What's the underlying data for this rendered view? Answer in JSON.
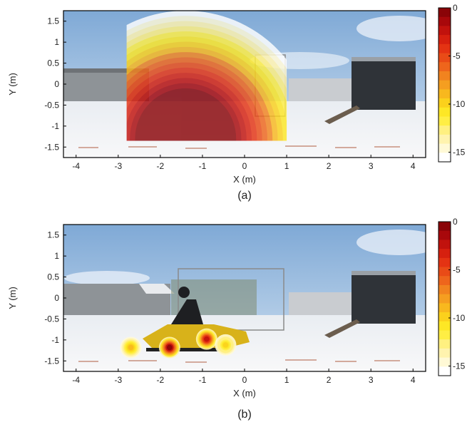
{
  "chart_data": [
    {
      "type": "heatmap",
      "caption": "(a)",
      "xlabel": "X (m)",
      "ylabel": "Y (m)",
      "xlim": [
        -4.3,
        4.3
      ],
      "ylim": [
        -1.75,
        1.75
      ],
      "xticks": [
        -4,
        -3,
        -2,
        -1,
        0,
        1,
        2,
        3,
        4
      ],
      "yticks": [
        1.5,
        1,
        0.5,
        0,
        -0.5,
        -1,
        -1.5
      ],
      "colorbar": {
        "ticks": [
          0,
          -5,
          -10,
          -15
        ],
        "range": [
          -16,
          0
        ]
      },
      "map": {
        "kind": "radial",
        "source": {
          "x": -1.4,
          "y": -1.3
        },
        "extent": {
          "x": [
            -2.8,
            1.0
          ],
          "y": [
            -1.35,
            1.75
          ]
        },
        "outer_radius": 3.05,
        "radius_0dB": 1.2
      }
    },
    {
      "type": "heatmap",
      "caption": "(b)",
      "xlabel": "X (m)",
      "ylabel": "Y (m)",
      "xlim": [
        -4.3,
        4.3
      ],
      "ylim": [
        -1.75,
        1.75
      ],
      "xticks": [
        -4,
        -3,
        -2,
        -1,
        0,
        1,
        2,
        3,
        4
      ],
      "yticks": [
        1.5,
        1,
        0.5,
        0,
        -0.5,
        -1,
        -1.5
      ],
      "colorbar": {
        "ticks": [
          0,
          -5,
          -10,
          -15
        ],
        "range": [
          -16,
          0
        ]
      },
      "hotspots": [
        {
          "x": -2.7,
          "y": -1.18,
          "peak_db": -9
        },
        {
          "x": -1.78,
          "y": -1.18,
          "peak_db": 0
        },
        {
          "x": -0.9,
          "y": -0.98,
          "peak_db": -2
        },
        {
          "x": -0.45,
          "y": -1.12,
          "peak_db": -10
        }
      ]
    }
  ],
  "colors": {
    "scale": [
      "#ffffff",
      "#fff9d6",
      "#fff3ae",
      "#fff080",
      "#ffee44",
      "#fde725",
      "#fbd11c",
      "#f8b81e",
      "#f59e20",
      "#f1831f",
      "#ee651c",
      "#e94b17",
      "#e43313",
      "#d6200f",
      "#c1120d",
      "#a8080b",
      "#8a0408"
    ],
    "sky": "#a8c6e6",
    "snow": "#f2f4f6"
  }
}
